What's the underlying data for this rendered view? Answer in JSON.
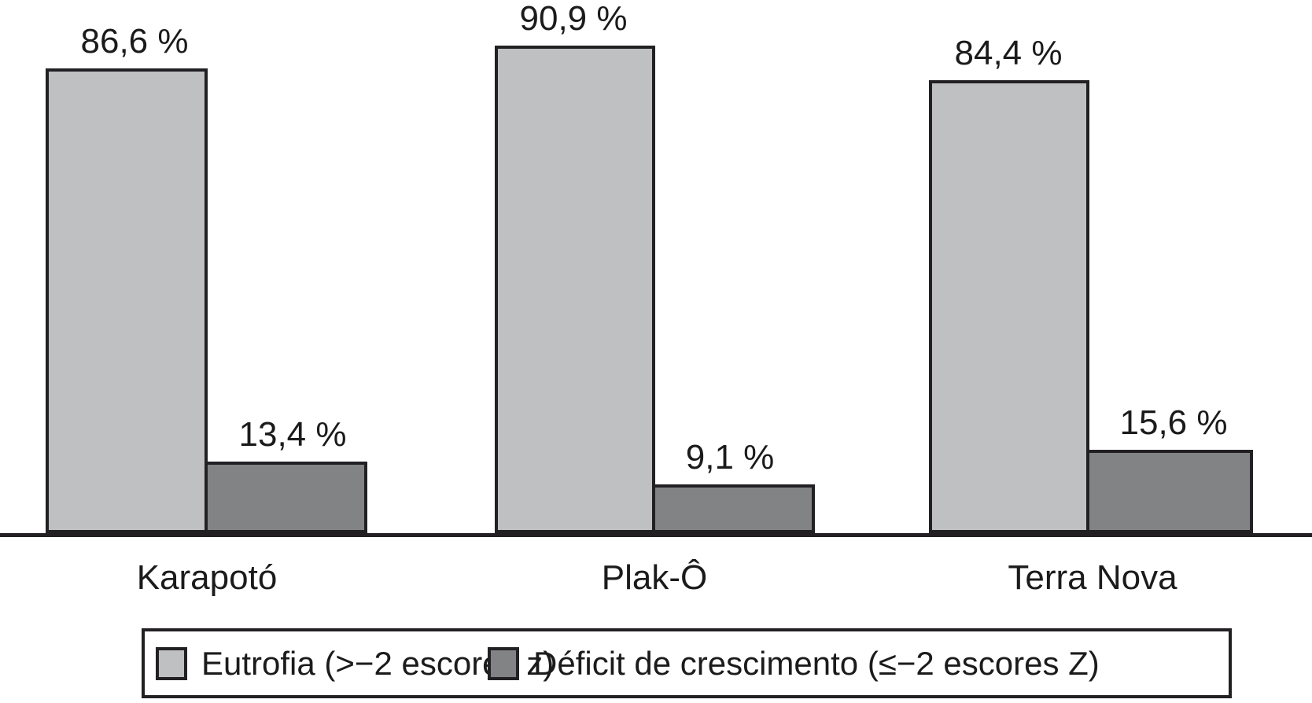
{
  "chart_data": {
    "type": "bar",
    "title": "",
    "xlabel": "",
    "ylabel": "",
    "unit": "%",
    "ylim": [
      0,
      100
    ],
    "grid": false,
    "legend_position": "bottom-box",
    "categories": [
      "Karapotó",
      "Plak-Ô",
      "Terra Nova"
    ],
    "series": [
      {
        "name": "Eutrofia (>−2 escores z)",
        "values": [
          86.6,
          90.9,
          84.4
        ],
        "display": [
          "86,6 %",
          "90,9 %",
          "84,4 %"
        ],
        "color": "#bfc0c2"
      },
      {
        "name": "Déficit de crescimento (≤−2 escores Z)",
        "values": [
          13.4,
          9.1,
          15.6
        ],
        "display": [
          "13,4 %",
          "9,1 %",
          "15,6 %"
        ],
        "color": "#828385"
      }
    ],
    "bar_border_color": "#222023",
    "axis_line_color": "#222023",
    "text_color": "#1b1b1b"
  }
}
